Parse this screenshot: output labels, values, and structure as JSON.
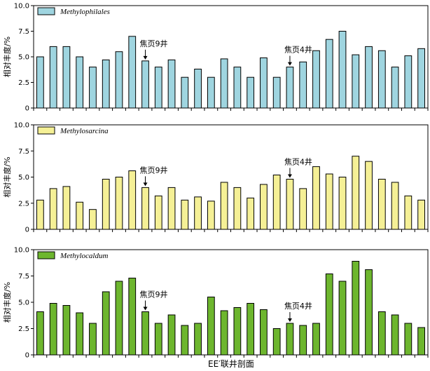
{
  "chart_data": [
    {
      "type": "bar",
      "legend": "Methylophilales",
      "color": "#9fd5e0",
      "ylabel": "相对丰度/%",
      "ylim": [
        0,
        10
      ],
      "yticks": [
        "0",
        "2.5",
        "5.0",
        "7.5",
        "10.0"
      ],
      "values": [
        5.0,
        6.0,
        6.0,
        5.0,
        4.0,
        4.7,
        5.5,
        7.0,
        4.6,
        4.0,
        4.7,
        3.0,
        3.8,
        3.0,
        4.8,
        4.0,
        3.0,
        4.9,
        3.0,
        4.0,
        4.5,
        5.6,
        6.7,
        7.5,
        5.2,
        6.0,
        5.6,
        4.0,
        5.1,
        5.8
      ],
      "annotations": [
        {
          "label": "焦页9井",
          "index": 8
        },
        {
          "label": "焦页4井",
          "index": 19
        }
      ]
    },
    {
      "type": "bar",
      "legend": "Methylosarcina",
      "color": "#f5f096",
      "ylabel": "相对丰度/%",
      "ylim": [
        0,
        10
      ],
      "yticks": [
        "0",
        "2.5",
        "5.0",
        "7.5",
        "10.0"
      ],
      "values": [
        2.8,
        3.9,
        4.1,
        2.6,
        1.9,
        4.8,
        5.0,
        5.6,
        4.0,
        3.2,
        4.0,
        2.8,
        3.1,
        2.7,
        4.5,
        4.0,
        3.0,
        4.3,
        5.2,
        4.8,
        3.9,
        6.0,
        5.3,
        5.0,
        7.0,
        6.5,
        4.8,
        4.5,
        3.2,
        2.8
      ],
      "annotations": [
        {
          "label": "焦页9井",
          "index": 8
        },
        {
          "label": "焦页4井",
          "index": 19
        }
      ]
    },
    {
      "type": "bar",
      "legend": "Methylocaldum",
      "color": "#6db62e",
      "ylabel": "相对丰度/%",
      "ylim": [
        0,
        10
      ],
      "yticks": [
        "0",
        "2.5",
        "5.0",
        "7.5",
        "10.0"
      ],
      "values": [
        4.1,
        4.9,
        4.7,
        4.0,
        3.0,
        6.0,
        7.0,
        7.3,
        4.1,
        3.0,
        3.8,
        2.8,
        3.0,
        5.5,
        4.2,
        4.5,
        4.9,
        4.3,
        2.5,
        3.0,
        2.8,
        3.0,
        7.7,
        7.0,
        8.9,
        8.1,
        4.1,
        3.8,
        3.0,
        2.6
      ],
      "annotations": [
        {
          "label": "焦页9井",
          "index": 8
        },
        {
          "label": "焦页4井",
          "index": 19
        }
      ],
      "xlabel": "EE′联井剖面"
    }
  ]
}
